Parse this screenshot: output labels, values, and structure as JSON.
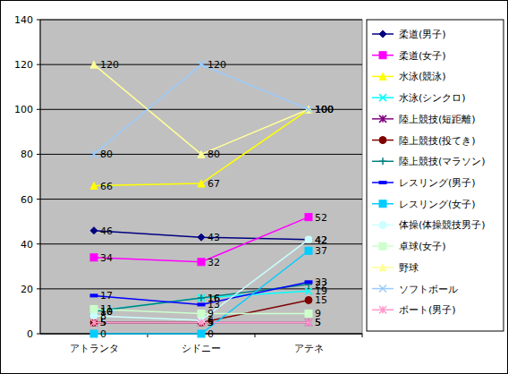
{
  "chart_data": {
    "type": "line",
    "categories": [
      "アトランタ",
      "シドニー",
      "アテネ"
    ],
    "ylim": [
      0,
      140
    ],
    "yticks": [
      0,
      20,
      40,
      60,
      80,
      100,
      120,
      140
    ],
    "grid": true,
    "legend": "right",
    "data_labels": true,
    "series": [
      {
        "name": "柔道(男子)",
        "color": "#000080",
        "marker": "diamond",
        "values": [
          46,
          43,
          42
        ]
      },
      {
        "name": "柔道(女子)",
        "color": "#ff00ff",
        "marker": "square",
        "values": [
          34,
          32,
          52
        ]
      },
      {
        "name": "水泳(競泳)",
        "color": "#ffff00",
        "marker": "triangle",
        "values": [
          66,
          67,
          100
        ]
      },
      {
        "name": "水泳(シンクロ)",
        "color": "#00ffff",
        "marker": "x",
        "values": [
          10,
          16,
          19
        ]
      },
      {
        "name": "陸上競技(短距離)",
        "color": "#800080",
        "marker": "star",
        "values": [
          5,
          5,
          5
        ]
      },
      {
        "name": "陸上競技(投てき)",
        "color": "#800000",
        "marker": "circle",
        "values": [
          5,
          5,
          15
        ]
      },
      {
        "name": "陸上競技(マラソン)",
        "color": "#008080",
        "marker": "plus",
        "values": [
          10,
          16,
          22
        ]
      },
      {
        "name": "レスリング(男子)",
        "color": "#0000ff",
        "marker": "dash",
        "values": [
          17,
          13,
          23
        ]
      },
      {
        "name": "レスリング(女子)",
        "color": "#00ccff",
        "marker": "square",
        "values": [
          0,
          0,
          37
        ]
      },
      {
        "name": "体操(体操競技男子)",
        "color": "#ccffff",
        "marker": "circle",
        "values": [
          8,
          6,
          42
        ]
      },
      {
        "name": "卓球(女子)",
        "color": "#ccffcc",
        "marker": "square",
        "values": [
          11,
          9,
          9
        ]
      },
      {
        "name": "野球",
        "color": "#ffff99",
        "marker": "triangle",
        "values": [
          120,
          80,
          100
        ]
      },
      {
        "name": "ソフトボール",
        "color": "#99ccff",
        "marker": "x",
        "values": [
          80,
          120,
          100
        ]
      },
      {
        "name": "ボート(男子)",
        "color": "#ff99cc",
        "marker": "star",
        "values": [
          5,
          5,
          5
        ]
      }
    ]
  }
}
